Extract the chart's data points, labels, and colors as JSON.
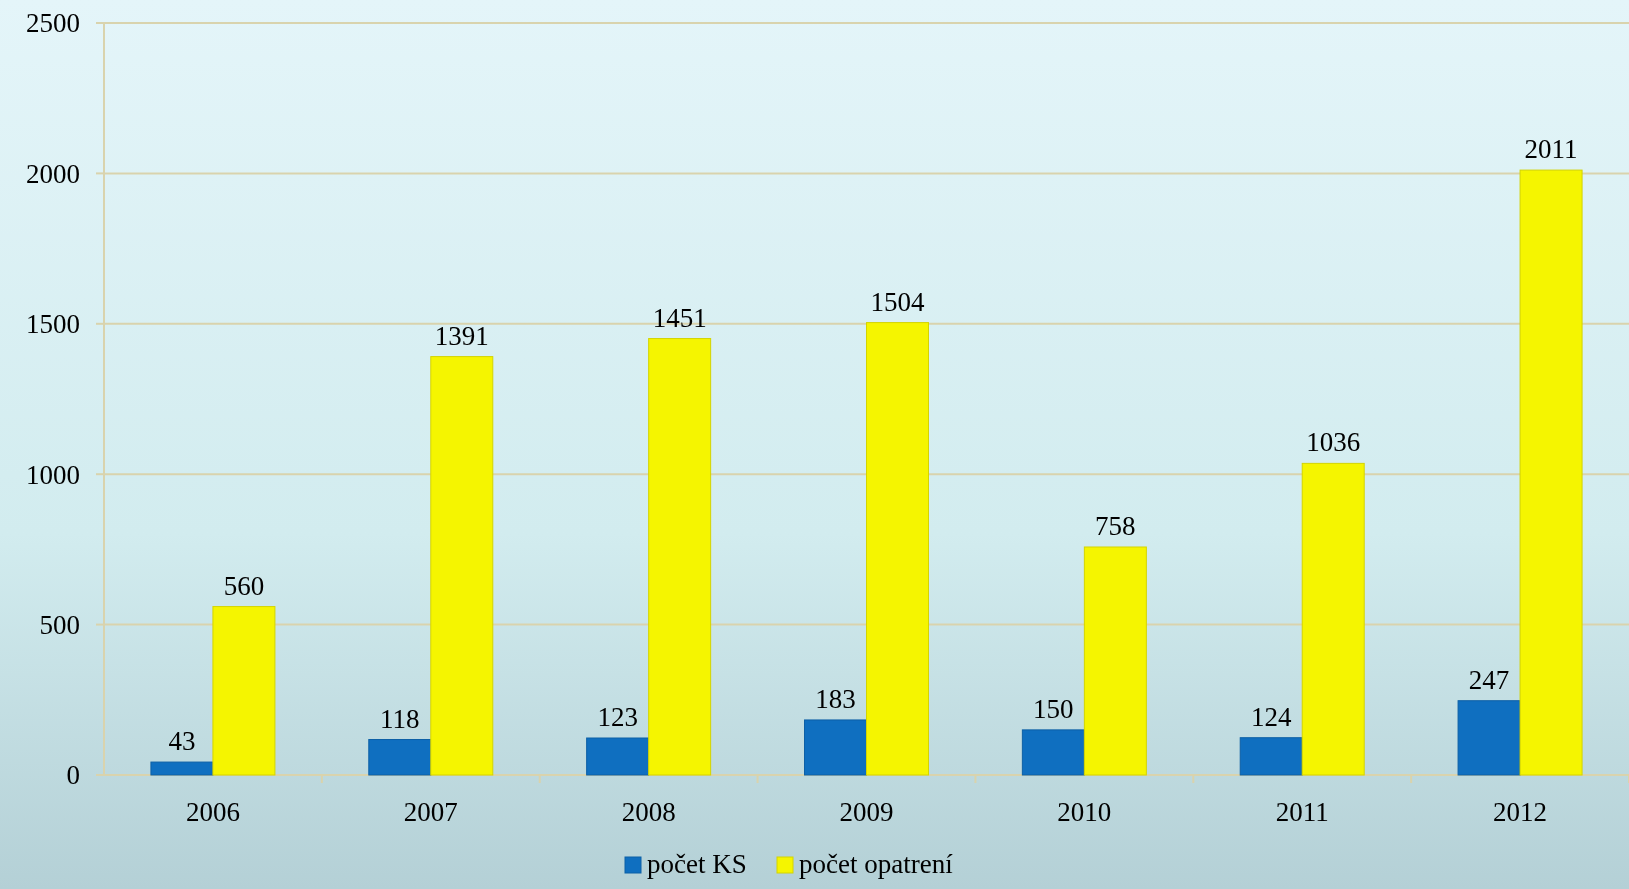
{
  "chart_data": {
    "type": "bar",
    "categories": [
      "2006",
      "2007",
      "2008",
      "2009",
      "2010",
      "2011",
      "2012"
    ],
    "series": [
      {
        "name": "počet KS",
        "color": "#0f6fc0",
        "values": [
          43,
          118,
          123,
          183,
          150,
          124,
          247
        ]
      },
      {
        "name": "počet opatrení",
        "color": "#f5f500",
        "values": [
          560,
          1391,
          1451,
          1504,
          758,
          1036,
          2011
        ]
      }
    ],
    "ylim": [
      0,
      2500
    ],
    "yticks": [
      0,
      500,
      1000,
      1500,
      2000,
      2500
    ],
    "grid": "y",
    "legend": "bottom",
    "data_labels": true
  }
}
